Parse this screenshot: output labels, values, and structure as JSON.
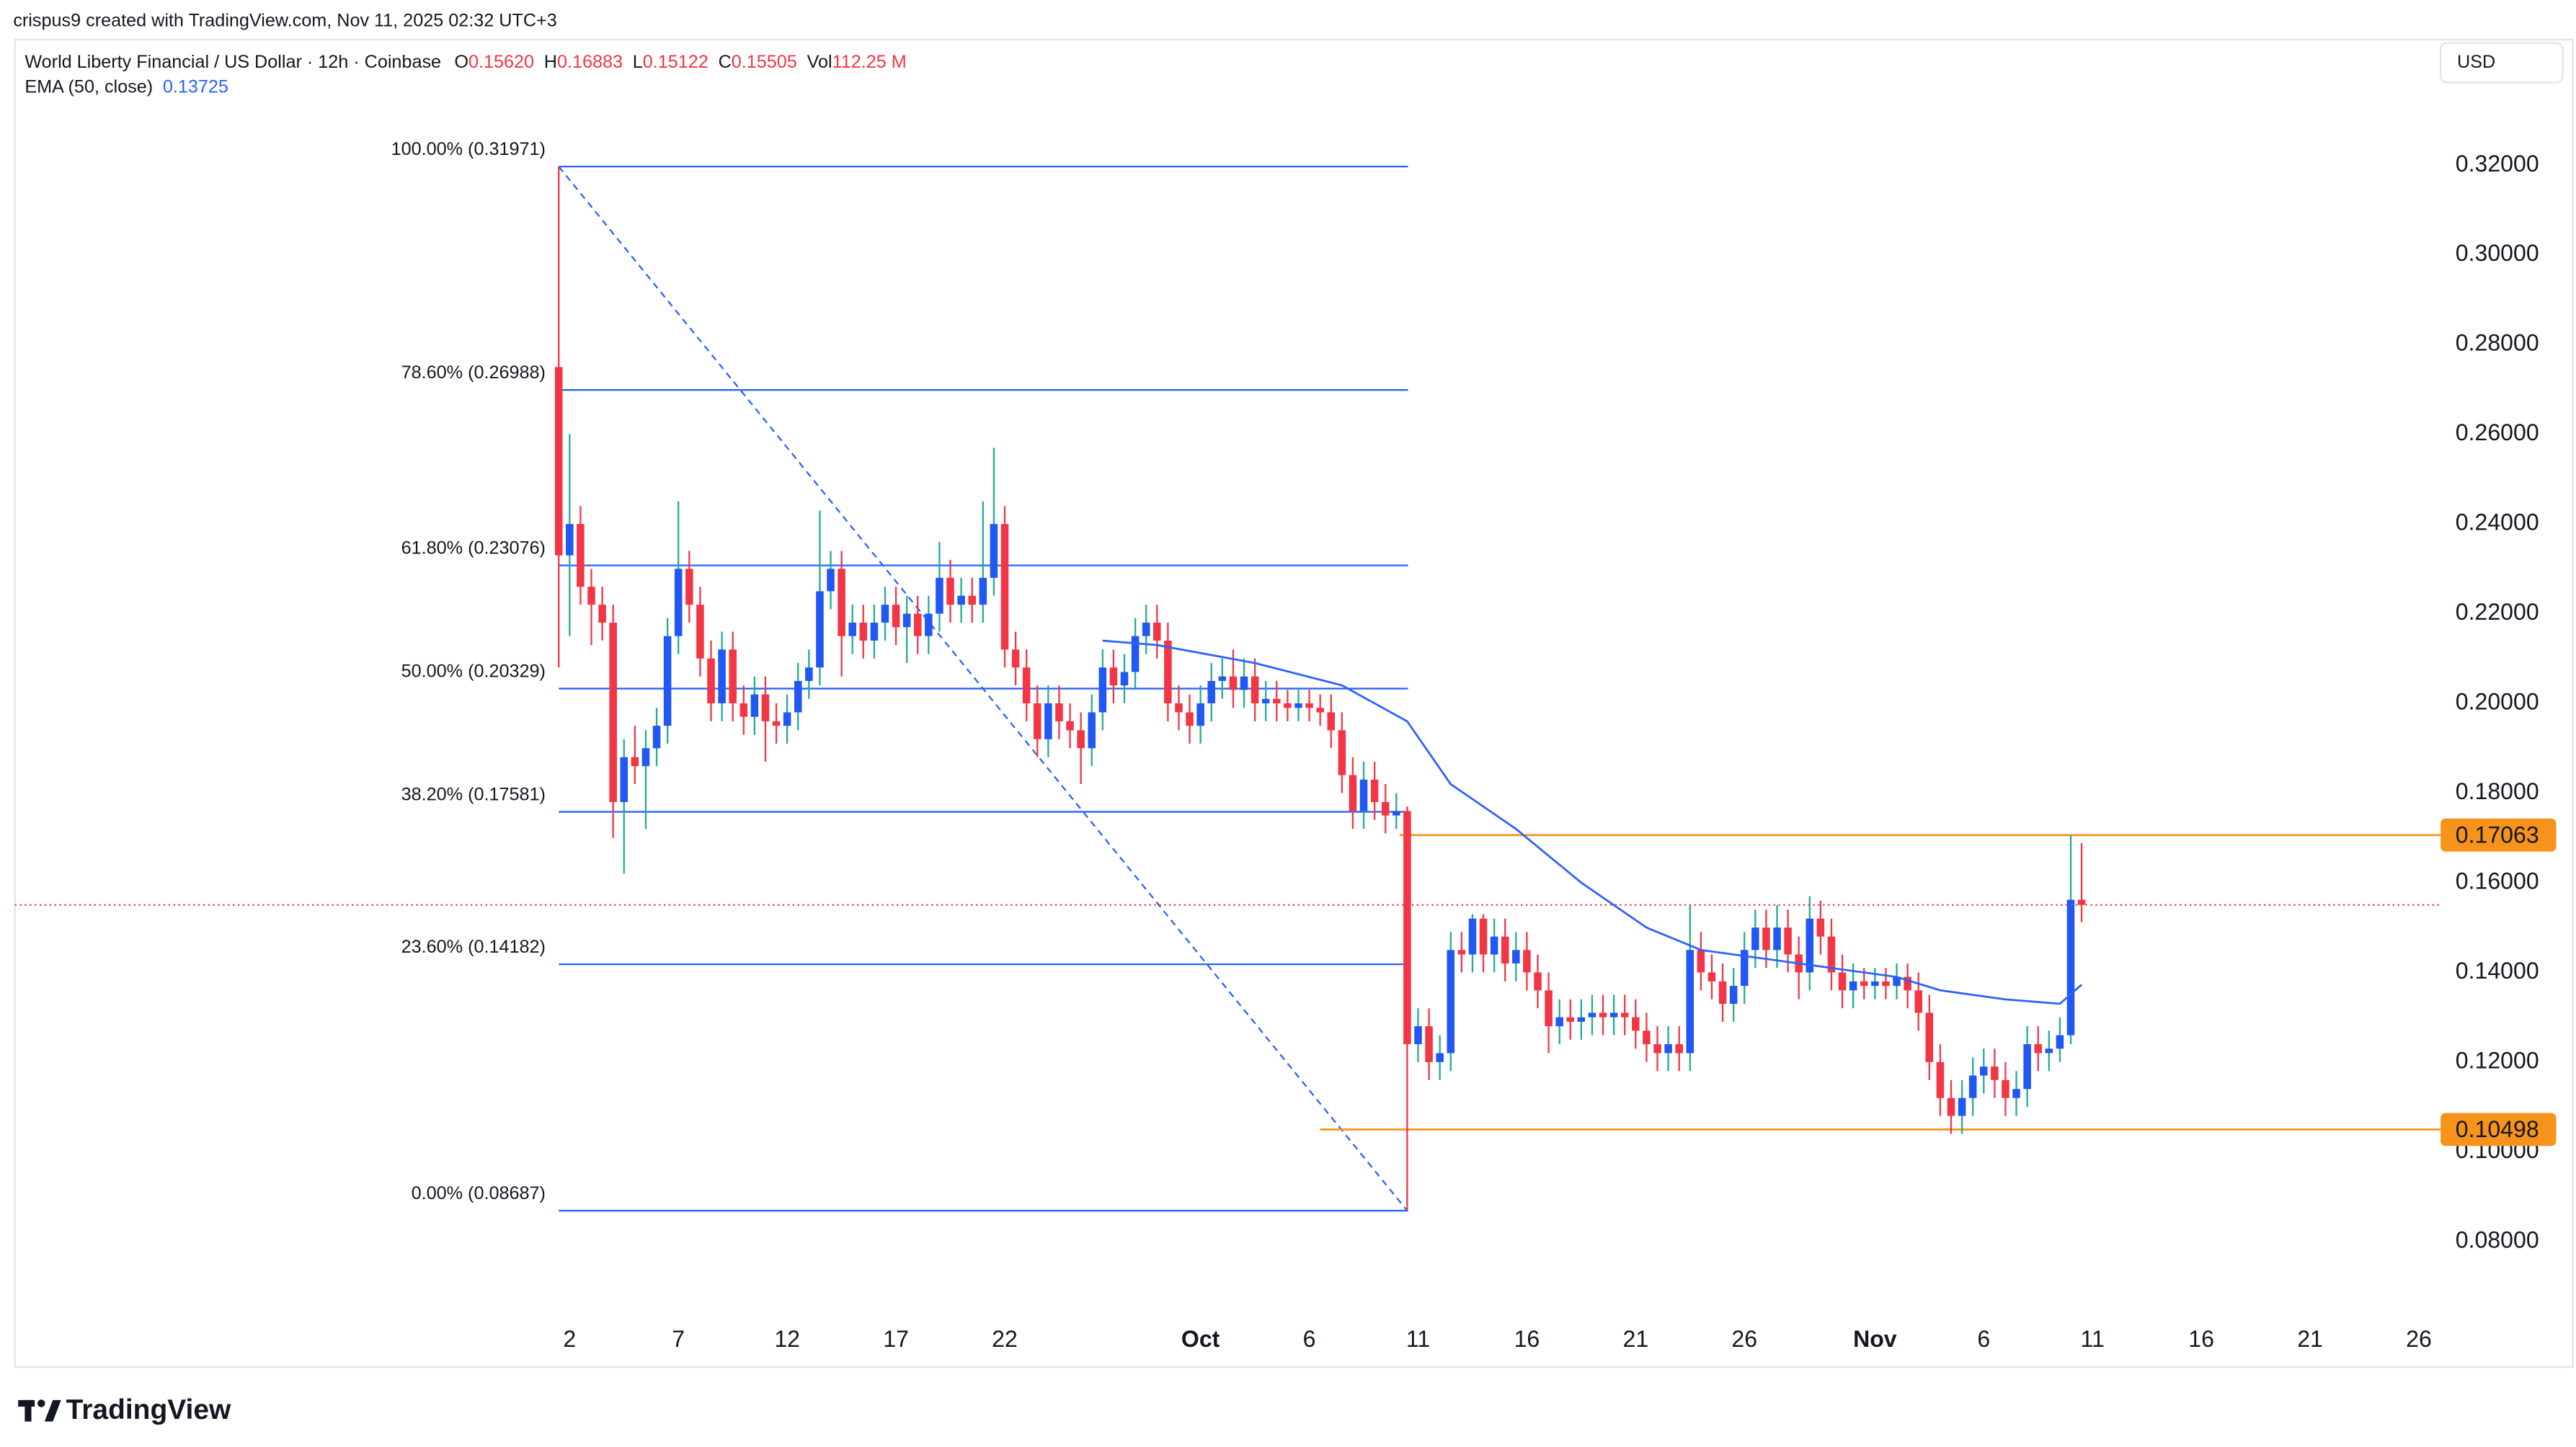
{
  "header": {
    "attribution": "crispus9 created with TradingView.com, Nov 11, 2025 02:32 UTC+3",
    "symbol": "World Liberty Financial / US Dollar · 12h · Coinbase",
    "stats": [
      {
        "key": "O",
        "value": "0.15620"
      },
      {
        "key": "H",
        "value": "0.16883"
      },
      {
        "key": "L",
        "value": "0.15122"
      },
      {
        "key": "C",
        "value": "0.15505"
      },
      {
        "key": "Vol",
        "value": "112.25 M"
      }
    ],
    "indicator": "EMA (50, close)",
    "indicator_value": "0.13725",
    "currency": "USD",
    "logo": "TradingView"
  },
  "chart_data": {
    "type": "candlestick",
    "up_color": "#2157f3",
    "up_wick": "#22ab94",
    "down_color": "#f23645",
    "xlim": [
      -50,
      173
    ],
    "xticks": [
      {
        "value": 1,
        "label": "2"
      },
      {
        "value": 11,
        "label": "7"
      },
      {
        "value": 21,
        "label": "12"
      },
      {
        "value": 31,
        "label": "17"
      },
      {
        "value": 41,
        "label": "22"
      },
      {
        "value": 59,
        "label": "Oct"
      },
      {
        "value": 69,
        "label": "6"
      },
      {
        "value": 79,
        "label": "11"
      },
      {
        "value": 89,
        "label": "16"
      },
      {
        "value": 99,
        "label": "21"
      },
      {
        "value": 109,
        "label": "26"
      },
      {
        "value": 121,
        "label": "Nov"
      },
      {
        "value": 131,
        "label": "6"
      },
      {
        "value": 141,
        "label": "11"
      },
      {
        "value": 151,
        "label": "16"
      },
      {
        "value": 161,
        "label": "21"
      },
      {
        "value": 171,
        "label": "26"
      }
    ],
    "ylim": [
      0.052,
      0.348
    ],
    "yticks": [
      {
        "value": 0.08,
        "label": "0.08000"
      },
      {
        "value": 0.1,
        "label": "0.10000"
      },
      {
        "value": 0.12,
        "label": "0.12000"
      },
      {
        "value": 0.14,
        "label": "0.14000"
      },
      {
        "value": 0.16,
        "label": "0.16000"
      },
      {
        "value": 0.18,
        "label": "0.18000"
      },
      {
        "value": 0.2,
        "label": "0.20000"
      },
      {
        "value": 0.22,
        "label": "0.22000"
      },
      {
        "value": 0.24,
        "label": "0.24000"
      },
      {
        "value": 0.26,
        "label": "0.26000"
      },
      {
        "value": 0.28,
        "label": "0.28000"
      },
      {
        "value": 0.3,
        "label": "0.30000"
      },
      {
        "value": 0.32,
        "label": "0.32000"
      }
    ],
    "ohlc": [
      [
        0.275,
        0.3197,
        0.208,
        0.233
      ],
      [
        0.233,
        0.26,
        0.215,
        0.24
      ],
      [
        0.24,
        0.244,
        0.222,
        0.226
      ],
      [
        0.226,
        0.23,
        0.213,
        0.222
      ],
      [
        0.222,
        0.226,
        0.214,
        0.218
      ],
      [
        0.218,
        0.222,
        0.17,
        0.178
      ],
      [
        0.178,
        0.192,
        0.162,
        0.188
      ],
      [
        0.188,
        0.195,
        0.182,
        0.186
      ],
      [
        0.186,
        0.194,
        0.172,
        0.19
      ],
      [
        0.19,
        0.199,
        0.186,
        0.195
      ],
      [
        0.195,
        0.219,
        0.191,
        0.215
      ],
      [
        0.215,
        0.245,
        0.211,
        0.23
      ],
      [
        0.23,
        0.234,
        0.218,
        0.222
      ],
      [
        0.222,
        0.226,
        0.206,
        0.21
      ],
      [
        0.21,
        0.214,
        0.196,
        0.2
      ],
      [
        0.2,
        0.216,
        0.196,
        0.212
      ],
      [
        0.212,
        0.216,
        0.196,
        0.2
      ],
      [
        0.2,
        0.204,
        0.193,
        0.197
      ],
      [
        0.197,
        0.206,
        0.193,
        0.202
      ],
      [
        0.202,
        0.206,
        0.187,
        0.196
      ],
      [
        0.196,
        0.2,
        0.191,
        0.195
      ],
      [
        0.195,
        0.202,
        0.191,
        0.198
      ],
      [
        0.198,
        0.209,
        0.194,
        0.205
      ],
      [
        0.205,
        0.212,
        0.201,
        0.208
      ],
      [
        0.208,
        0.243,
        0.204,
        0.225
      ],
      [
        0.225,
        0.234,
        0.221,
        0.23
      ],
      [
        0.23,
        0.234,
        0.206,
        0.215
      ],
      [
        0.215,
        0.222,
        0.211,
        0.218
      ],
      [
        0.218,
        0.222,
        0.21,
        0.214
      ],
      [
        0.214,
        0.222,
        0.21,
        0.218
      ],
      [
        0.218,
        0.226,
        0.214,
        0.222
      ],
      [
        0.222,
        0.226,
        0.213,
        0.217
      ],
      [
        0.217,
        0.224,
        0.209,
        0.22
      ],
      [
        0.22,
        0.224,
        0.211,
        0.215
      ],
      [
        0.215,
        0.224,
        0.211,
        0.22
      ],
      [
        0.22,
        0.236,
        0.216,
        0.228
      ],
      [
        0.228,
        0.232,
        0.218,
        0.222
      ],
      [
        0.222,
        0.228,
        0.218,
        0.224
      ],
      [
        0.224,
        0.228,
        0.218,
        0.222
      ],
      [
        0.222,
        0.245,
        0.218,
        0.228
      ],
      [
        0.228,
        0.257,
        0.224,
        0.24
      ],
      [
        0.24,
        0.244,
        0.208,
        0.212
      ],
      [
        0.212,
        0.216,
        0.204,
        0.208
      ],
      [
        0.208,
        0.212,
        0.196,
        0.2
      ],
      [
        0.2,
        0.204,
        0.188,
        0.192
      ],
      [
        0.192,
        0.204,
        0.188,
        0.2
      ],
      [
        0.2,
        0.204,
        0.192,
        0.196
      ],
      [
        0.196,
        0.2,
        0.19,
        0.194
      ],
      [
        0.194,
        0.198,
        0.182,
        0.19
      ],
      [
        0.19,
        0.202,
        0.186,
        0.198
      ],
      [
        0.198,
        0.212,
        0.194,
        0.208
      ],
      [
        0.208,
        0.212,
        0.2,
        0.204
      ],
      [
        0.204,
        0.211,
        0.2,
        0.207
      ],
      [
        0.207,
        0.219,
        0.203,
        0.215
      ],
      [
        0.215,
        0.222,
        0.211,
        0.218
      ],
      [
        0.218,
        0.222,
        0.21,
        0.214
      ],
      [
        0.214,
        0.218,
        0.196,
        0.2
      ],
      [
        0.2,
        0.204,
        0.194,
        0.198
      ],
      [
        0.198,
        0.202,
        0.191,
        0.195
      ],
      [
        0.195,
        0.204,
        0.191,
        0.2
      ],
      [
        0.2,
        0.209,
        0.196,
        0.205
      ],
      [
        0.205,
        0.21,
        0.201,
        0.206
      ],
      [
        0.206,
        0.212,
        0.199,
        0.203
      ],
      [
        0.203,
        0.21,
        0.199,
        0.206
      ],
      [
        0.206,
        0.21,
        0.196,
        0.2
      ],
      [
        0.2,
        0.205,
        0.196,
        0.201
      ],
      [
        0.201,
        0.205,
        0.196,
        0.2
      ],
      [
        0.2,
        0.203,
        0.196,
        0.199
      ],
      [
        0.199,
        0.203,
        0.196,
        0.2
      ],
      [
        0.2,
        0.203,
        0.196,
        0.199
      ],
      [
        0.199,
        0.202,
        0.195,
        0.198
      ],
      [
        0.198,
        0.202,
        0.19,
        0.194
      ],
      [
        0.194,
        0.198,
        0.18,
        0.184
      ],
      [
        0.184,
        0.188,
        0.172,
        0.176
      ],
      [
        0.176,
        0.187,
        0.172,
        0.183
      ],
      [
        0.183,
        0.187,
        0.174,
        0.178
      ],
      [
        0.178,
        0.182,
        0.171,
        0.175
      ],
      [
        0.175,
        0.18,
        0.172,
        0.176
      ],
      [
        0.176,
        0.177,
        0.0869,
        0.124
      ],
      [
        0.124,
        0.132,
        0.12,
        0.128
      ],
      [
        0.128,
        0.132,
        0.116,
        0.12
      ],
      [
        0.12,
        0.126,
        0.116,
        0.122
      ],
      [
        0.122,
        0.149,
        0.118,
        0.145
      ],
      [
        0.145,
        0.149,
        0.14,
        0.144
      ],
      [
        0.144,
        0.153,
        0.14,
        0.152
      ],
      [
        0.152,
        0.153,
        0.14,
        0.144
      ],
      [
        0.144,
        0.152,
        0.14,
        0.148
      ],
      [
        0.148,
        0.152,
        0.138,
        0.142
      ],
      [
        0.142,
        0.149,
        0.138,
        0.145
      ],
      [
        0.145,
        0.149,
        0.136,
        0.14
      ],
      [
        0.14,
        0.144,
        0.132,
        0.136
      ],
      [
        0.136,
        0.14,
        0.122,
        0.128
      ],
      [
        0.128,
        0.134,
        0.124,
        0.13
      ],
      [
        0.13,
        0.134,
        0.125,
        0.129
      ],
      [
        0.129,
        0.134,
        0.125,
        0.13
      ],
      [
        0.13,
        0.135,
        0.126,
        0.131
      ],
      [
        0.131,
        0.135,
        0.126,
        0.13
      ],
      [
        0.13,
        0.135,
        0.126,
        0.131
      ],
      [
        0.131,
        0.135,
        0.126,
        0.13
      ],
      [
        0.13,
        0.134,
        0.123,
        0.127
      ],
      [
        0.127,
        0.131,
        0.12,
        0.124
      ],
      [
        0.124,
        0.128,
        0.118,
        0.122
      ],
      [
        0.122,
        0.128,
        0.118,
        0.124
      ],
      [
        0.124,
        0.128,
        0.118,
        0.122
      ],
      [
        0.122,
        0.155,
        0.118,
        0.145
      ],
      [
        0.145,
        0.149,
        0.136,
        0.14
      ],
      [
        0.14,
        0.144,
        0.134,
        0.138
      ],
      [
        0.138,
        0.142,
        0.129,
        0.133
      ],
      [
        0.133,
        0.141,
        0.129,
        0.137
      ],
      [
        0.137,
        0.149,
        0.133,
        0.145
      ],
      [
        0.145,
        0.154,
        0.141,
        0.15
      ],
      [
        0.15,
        0.154,
        0.141,
        0.145
      ],
      [
        0.145,
        0.155,
        0.141,
        0.15
      ],
      [
        0.15,
        0.154,
        0.14,
        0.144
      ],
      [
        0.144,
        0.148,
        0.134,
        0.14
      ],
      [
        0.14,
        0.157,
        0.136,
        0.152
      ],
      [
        0.152,
        0.156,
        0.144,
        0.148
      ],
      [
        0.148,
        0.152,
        0.136,
        0.14
      ],
      [
        0.14,
        0.144,
        0.132,
        0.136
      ],
      [
        0.136,
        0.142,
        0.132,
        0.138
      ],
      [
        0.138,
        0.141,
        0.134,
        0.137
      ],
      [
        0.137,
        0.141,
        0.134,
        0.138
      ],
      [
        0.138,
        0.141,
        0.134,
        0.137
      ],
      [
        0.137,
        0.142,
        0.134,
        0.139
      ],
      [
        0.139,
        0.142,
        0.132,
        0.136
      ],
      [
        0.136,
        0.14,
        0.127,
        0.131
      ],
      [
        0.131,
        0.135,
        0.116,
        0.12
      ],
      [
        0.12,
        0.124,
        0.108,
        0.112
      ],
      [
        0.112,
        0.116,
        0.104,
        0.108
      ],
      [
        0.108,
        0.116,
        0.104,
        0.112
      ],
      [
        0.112,
        0.121,
        0.108,
        0.117
      ],
      [
        0.117,
        0.123,
        0.113,
        0.119
      ],
      [
        0.119,
        0.123,
        0.112,
        0.116
      ],
      [
        0.116,
        0.12,
        0.108,
        0.112
      ],
      [
        0.112,
        0.118,
        0.108,
        0.114
      ],
      [
        0.114,
        0.128,
        0.11,
        0.124
      ],
      [
        0.124,
        0.128,
        0.118,
        0.122
      ],
      [
        0.122,
        0.127,
        0.118,
        0.123
      ],
      [
        0.123,
        0.13,
        0.12,
        0.126
      ],
      [
        0.126,
        0.17063,
        0.124,
        0.1562
      ],
      [
        0.1562,
        0.16883,
        0.15122,
        0.15505
      ]
    ],
    "ema": {
      "color": "#2962ff",
      "x": [
        50,
        55,
        64,
        72,
        78,
        82,
        88,
        94,
        100,
        105,
        111,
        117,
        123,
        127,
        133,
        138,
        140
      ],
      "values": [
        0.214,
        0.213,
        0.209,
        0.204,
        0.196,
        0.182,
        0.172,
        0.16,
        0.15,
        0.145,
        0.143,
        0.141,
        0.139,
        0.136,
        0.134,
        0.133,
        0.13725
      ]
    },
    "fib_color": "#2962ff",
    "fib_levels": [
      {
        "label": "100.00% (0.31971)",
        "value": 0.31971
      },
      {
        "label": "78.60% (0.26988)",
        "value": 0.26988
      },
      {
        "label": "61.80% (0.23076)",
        "value": 0.23076
      },
      {
        "label": "50.00% (0.20329)",
        "value": 0.20329
      },
      {
        "label": "38.20% (0.17581)",
        "value": 0.17581
      },
      {
        "label": "23.60% (0.14182)",
        "value": 0.14182
      },
      {
        "label": "0.00% (0.08687)",
        "value": 0.08687
      }
    ],
    "levels_color": "#f7931a",
    "levels": [
      {
        "value": 0.17063
      },
      {
        "value": 0.10498
      }
    ]
  }
}
